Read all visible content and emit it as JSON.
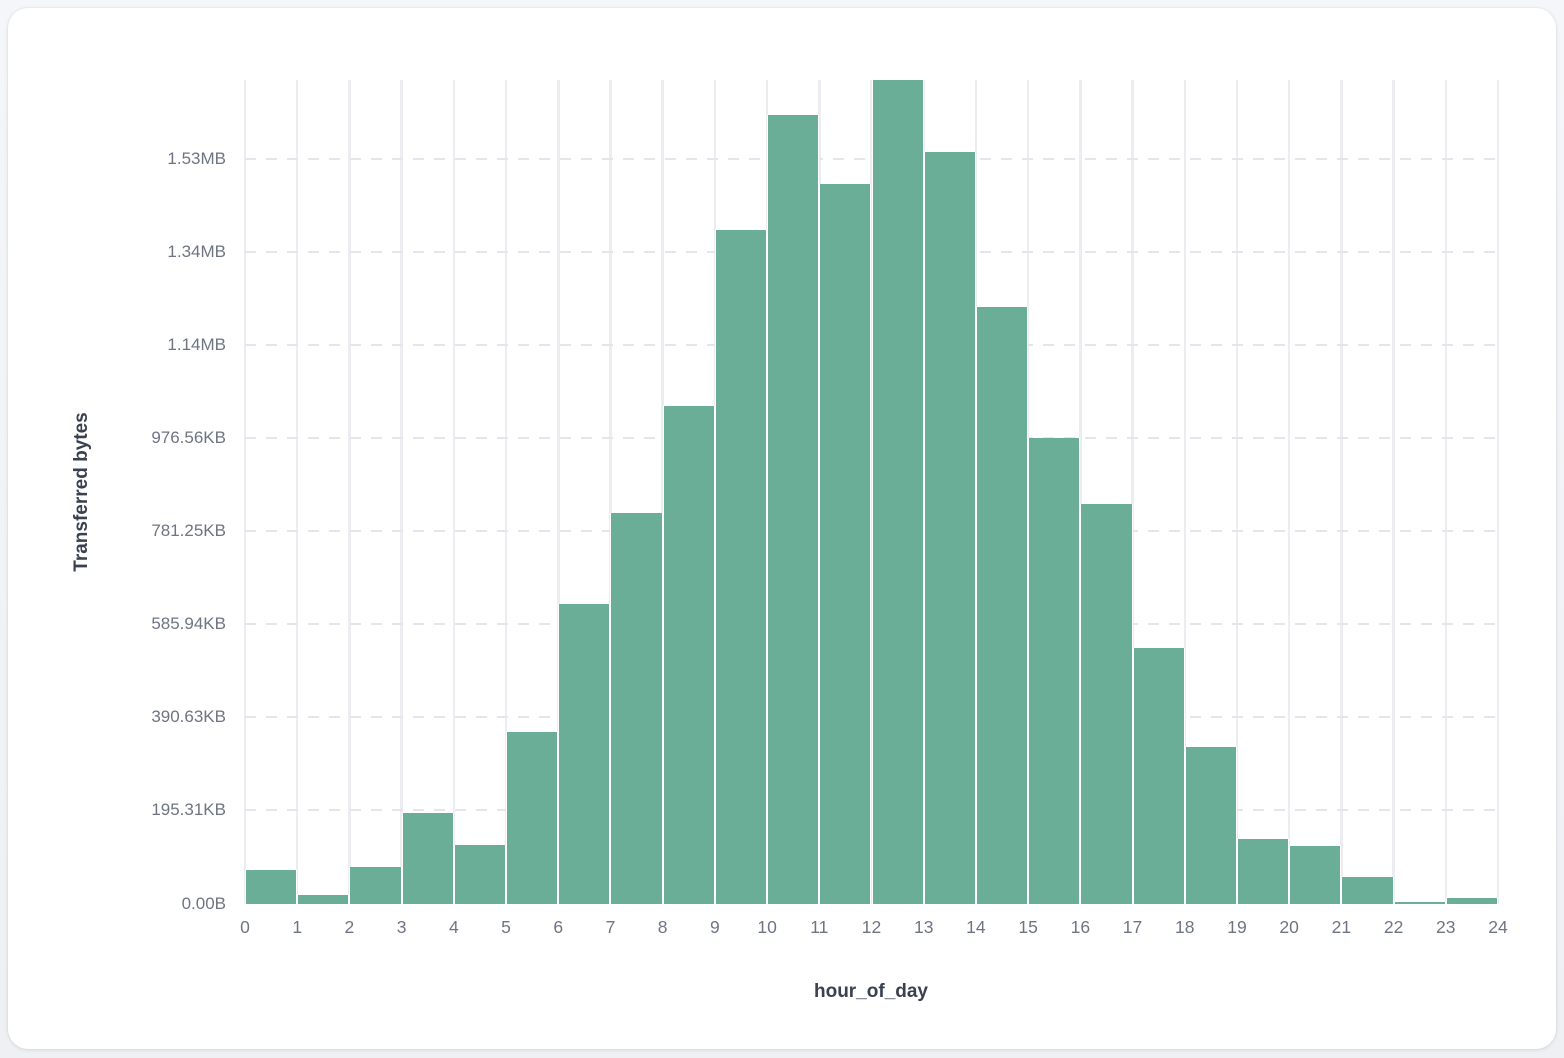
{
  "page": {
    "background_color": "#f0f2f5",
    "card_background_color": "#ffffff"
  },
  "chart_data": {
    "type": "bar",
    "title": "",
    "xlabel": "hour_of_day",
    "ylabel": "Transferred bytes",
    "legend_position": "none",
    "grid": true,
    "bin_width_hours": 1,
    "bin_start_hours": [
      0,
      1,
      2,
      3,
      4,
      5,
      6,
      7,
      8,
      9,
      10,
      11,
      12,
      13,
      14,
      15,
      16,
      17,
      18,
      19,
      20,
      21,
      22,
      23
    ],
    "values_bytes": [
      73000,
      18500,
      78500,
      195500,
      125000,
      369000,
      643500,
      839000,
      1070000,
      1448000,
      1695000,
      1548000,
      1770500,
      1616000,
      1283000,
      1000000,
      858000,
      548500,
      335500,
      138500,
      124000,
      56000,
      2200,
      10800
    ],
    "xlim_hours": [
      0,
      24
    ],
    "ylim_bytes": [
      0,
      1770500
    ],
    "x_tick_labels": [
      "0",
      "1",
      "2",
      "3",
      "4",
      "5",
      "6",
      "7",
      "8",
      "9",
      "10",
      "11",
      "12",
      "13",
      "14",
      "15",
      "16",
      "17",
      "18",
      "19",
      "20",
      "21",
      "22",
      "23",
      "24"
    ],
    "y_ticks": [
      {
        "bytes": 0,
        "label": "0.00B"
      },
      {
        "bytes": 200000,
        "label": "195.31KB"
      },
      {
        "bytes": 400000,
        "label": "390.63KB"
      },
      {
        "bytes": 600000,
        "label": "585.94KB"
      },
      {
        "bytes": 800000,
        "label": "781.25KB"
      },
      {
        "bytes": 1000000,
        "label": "976.56KB"
      },
      {
        "bytes": 1200000,
        "label": "1.14MB"
      },
      {
        "bytes": 1400000,
        "label": "1.34MB"
      },
      {
        "bytes": 1600000,
        "label": "1.53MB"
      }
    ],
    "colors": {
      "bar_fill": "#6bae97",
      "vertical_gridline": "#ebedf1",
      "horizontal_gridline_dashed": "#e4e6eb",
      "tick_label": "#6e7582",
      "axis_title": "#394150"
    }
  }
}
